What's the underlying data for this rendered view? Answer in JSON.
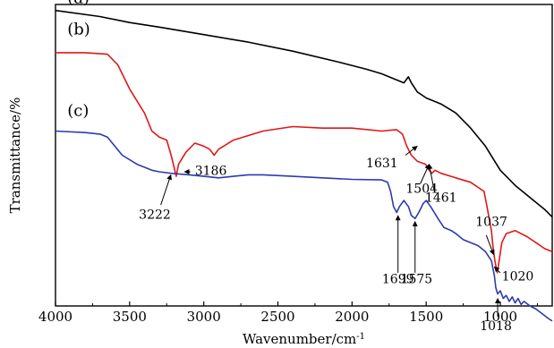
{
  "chart_data": {
    "type": "line",
    "title": "",
    "xlabel": "Wavenumber/cm",
    "xlabel_superscript": "-1",
    "ylabel": "Transmittance/%",
    "xlim": [
      4000,
      650
    ],
    "x_reversed": true,
    "x_ticks": [
      4000,
      3500,
      3000,
      2500,
      2000,
      1500,
      1000
    ],
    "x_tick_labels": [
      "4000",
      "3500",
      "3000",
      "2500",
      "2000",
      "1500",
      "1000"
    ],
    "y_ticks_visible": false,
    "grid": false,
    "legend": "none",
    "ylim": [
      0,
      100
    ],
    "series": [
      {
        "name": "(a)",
        "color": "#000000",
        "points": [
          [
            4000,
            98
          ],
          [
            3700,
            96
          ],
          [
            3500,
            94
          ],
          [
            3300,
            92.5
          ],
          [
            3000,
            90
          ],
          [
            2700,
            87.5
          ],
          [
            2400,
            84.5
          ],
          [
            2100,
            81
          ],
          [
            1900,
            78.5
          ],
          [
            1800,
            77
          ],
          [
            1700,
            75
          ],
          [
            1650,
            74
          ],
          [
            1620,
            76
          ],
          [
            1600,
            74
          ],
          [
            1560,
            71
          ],
          [
            1500,
            69
          ],
          [
            1400,
            67
          ],
          [
            1300,
            64
          ],
          [
            1200,
            59
          ],
          [
            1100,
            53
          ],
          [
            1050,
            49
          ],
          [
            1000,
            45
          ],
          [
            900,
            40
          ],
          [
            800,
            36
          ],
          [
            700,
            32
          ],
          [
            650,
            29.5
          ]
        ]
      },
      {
        "name": "(b)",
        "color": "#e01818",
        "points": [
          [
            4000,
            84
          ],
          [
            3800,
            84
          ],
          [
            3650,
            83.5
          ],
          [
            3580,
            80
          ],
          [
            3500,
            72
          ],
          [
            3400,
            64
          ],
          [
            3350,
            58
          ],
          [
            3300,
            56
          ],
          [
            3250,
            55
          ],
          [
            3220,
            50
          ],
          [
            3200,
            46
          ],
          [
            3186,
            43
          ],
          [
            3170,
            47
          ],
          [
            3120,
            51
          ],
          [
            3060,
            54
          ],
          [
            3000,
            53
          ],
          [
            2960,
            52
          ],
          [
            2930,
            50
          ],
          [
            2900,
            52
          ],
          [
            2800,
            55
          ],
          [
            2600,
            58
          ],
          [
            2400,
            59.5
          ],
          [
            2200,
            59
          ],
          [
            2000,
            59
          ],
          [
            1800,
            58
          ],
          [
            1700,
            58.5
          ],
          [
            1660,
            57
          ],
          [
            1631,
            53
          ],
          [
            1600,
            50
          ],
          [
            1560,
            48
          ],
          [
            1504,
            47
          ],
          [
            1480,
            45
          ],
          [
            1461,
            44
          ],
          [
            1440,
            45
          ],
          [
            1400,
            44
          ],
          [
            1300,
            42.5
          ],
          [
            1200,
            41
          ],
          [
            1110,
            38
          ],
          [
            1090,
            33
          ],
          [
            1060,
            25
          ],
          [
            1050,
            20
          ],
          [
            1037,
            15
          ],
          [
            1025,
            12
          ],
          [
            1020,
            11
          ],
          [
            1005,
            16
          ],
          [
            990,
            21
          ],
          [
            960,
            24
          ],
          [
            900,
            25
          ],
          [
            820,
            23
          ],
          [
            760,
            21
          ],
          [
            700,
            19
          ],
          [
            650,
            18
          ]
        ]
      },
      {
        "name": "(c)",
        "color": "#2b3bb0",
        "points": [
          [
            4000,
            58
          ],
          [
            3800,
            57.5
          ],
          [
            3700,
            57
          ],
          [
            3650,
            56
          ],
          [
            3600,
            53
          ],
          [
            3550,
            50
          ],
          [
            3450,
            47
          ],
          [
            3350,
            45
          ],
          [
            3300,
            44.5
          ],
          [
            3222,
            44
          ],
          [
            3100,
            43.5
          ],
          [
            3000,
            43
          ],
          [
            2900,
            42.5
          ],
          [
            2800,
            43
          ],
          [
            2700,
            43.5
          ],
          [
            2600,
            43.5
          ],
          [
            2400,
            43
          ],
          [
            2200,
            42.5
          ],
          [
            2000,
            42
          ],
          [
            1800,
            41.8
          ],
          [
            1760,
            41
          ],
          [
            1740,
            38
          ],
          [
            1720,
            33
          ],
          [
            1699,
            31
          ],
          [
            1680,
            33
          ],
          [
            1650,
            35
          ],
          [
            1620,
            33
          ],
          [
            1600,
            30
          ],
          [
            1575,
            29
          ],
          [
            1550,
            31
          ],
          [
            1520,
            34
          ],
          [
            1500,
            35
          ],
          [
            1470,
            33
          ],
          [
            1420,
            29
          ],
          [
            1380,
            26
          ],
          [
            1330,
            25
          ],
          [
            1300,
            24
          ],
          [
            1250,
            22
          ],
          [
            1200,
            21
          ],
          [
            1150,
            20
          ],
          [
            1100,
            18
          ],
          [
            1060,
            15
          ],
          [
            1040,
            10
          ],
          [
            1030,
            6
          ],
          [
            1018,
            4
          ],
          [
            1000,
            5
          ],
          [
            980,
            2.5
          ],
          [
            960,
            3.5
          ],
          [
            940,
            1.5
          ],
          [
            920,
            3
          ],
          [
            900,
            1
          ],
          [
            880,
            2.5
          ],
          [
            860,
            0.5
          ],
          [
            840,
            1.5
          ],
          [
            800,
            0
          ],
          [
            760,
            -1
          ],
          [
            720,
            -2.5
          ],
          [
            680,
            -4
          ],
          [
            650,
            -5
          ]
        ]
      }
    ],
    "panel_labels": [
      {
        "text": "(a)",
        "x": 3920,
        "y": 100.5
      },
      {
        "text": "(b)",
        "x": 3920,
        "y": 90
      },
      {
        "text": "(c)",
        "x": 3920,
        "y": 63
      }
    ],
    "annotations": [
      {
        "text": "3186",
        "point": [
          3186,
          43
        ],
        "label_at": [
          3060,
          43.5
        ],
        "anchor": "start",
        "arrow_to": [
          3130,
          44.5
        ],
        "arrow_from": [
          3090,
          44.5
        ]
      },
      {
        "text": "3222",
        "point": [
          3222,
          44
        ],
        "label_at": [
          3330,
          29
        ],
        "anchor": "middle",
        "arrow_from": [
          3290,
          33.5
        ],
        "arrow_to": [
          3222,
          43.5
        ]
      },
      {
        "text": "1631",
        "point": [
          1631,
          53
        ],
        "label_at": [
          1690,
          46
        ],
        "anchor": "end",
        "arrow_from": [
          1640,
          50
        ],
        "arrow_to": [
          1560,
          53
        ]
      },
      {
        "text": "1504",
        "point": [
          1504,
          47
        ],
        "label_at": [
          1530,
          37.5
        ],
        "anchor": "middle",
        "arrow_from": [
          1540,
          40.5
        ],
        "arrow_to": [
          1480,
          47
        ]
      },
      {
        "text": "1461",
        "point": [
          1461,
          44
        ],
        "label_at": [
          1400,
          34.5
        ],
        "anchor": "middle",
        "arrow_from": [
          1445,
          38
        ],
        "arrow_to": [
          1480,
          47
        ]
      },
      {
        "text": "1037",
        "point": [
          1037,
          15
        ],
        "label_at": [
          1060,
          26.5
        ],
        "anchor": "middle",
        "arrow_from": [
          1095,
          23.5
        ],
        "arrow_to": [
          1045,
          17
        ]
      },
      {
        "text": "1020",
        "point": [
          1020,
          11
        ],
        "label_at": [
          990,
          8.5
        ],
        "anchor": "start",
        "arrow_from": [
          1000,
          11
        ],
        "arrow_to": [
          1040,
          13
        ]
      },
      {
        "text": "1699",
        "point": [
          1699,
          31
        ],
        "label_at": [
          1690,
          7.5
        ],
        "anchor": "middle",
        "arrow_from": [
          1690,
          11
        ],
        "arrow_to": [
          1690,
          30
        ]
      },
      {
        "text": "1575",
        "point": [
          1575,
          29
        ],
        "label_at": [
          1565,
          7.5
        ],
        "anchor": "middle",
        "arrow_from": [
          1575,
          11
        ],
        "arrow_to": [
          1575,
          28
        ]
      },
      {
        "text": "1018",
        "point": [
          1018,
          4
        ],
        "label_at": [
          1030,
          -8
        ],
        "anchor": "middle",
        "arrow_from": [
          1018,
          -3.5
        ],
        "arrow_to": [
          1018,
          2.5
        ]
      }
    ]
  }
}
